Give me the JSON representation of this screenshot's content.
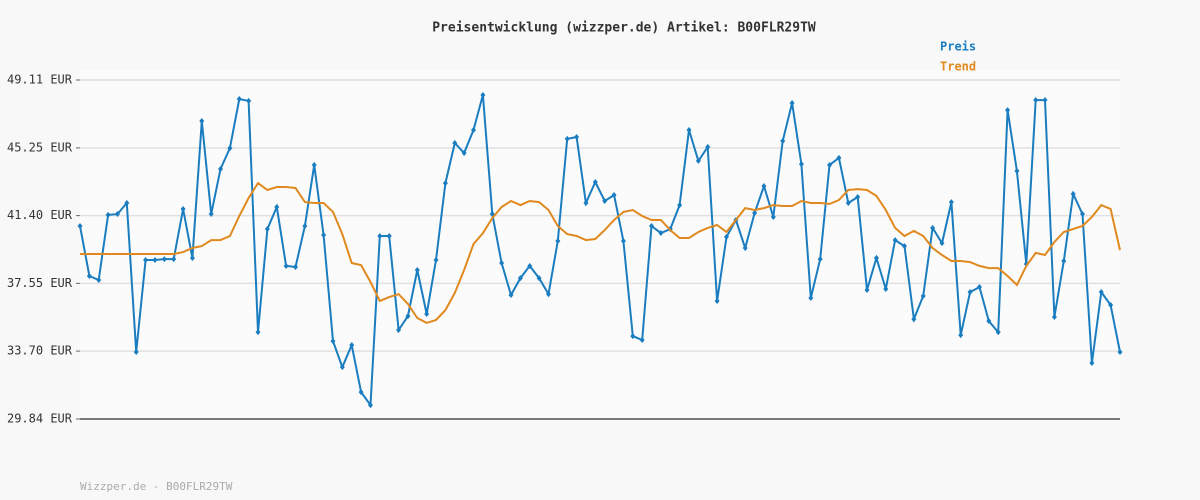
{
  "chart_data": {
    "type": "line",
    "title": "Preisentwicklung (wizzper.de) Artikel: B00FLR29TW",
    "footer": "Wizzper.de - B00FLR29TW",
    "ylim": [
      29.84,
      49.11
    ],
    "yticks": [
      {
        "value": 29.84,
        "label": "29.84 EUR"
      },
      {
        "value": 33.7,
        "label": "33.70 EUR"
      },
      {
        "value": 37.55,
        "label": "37.55 EUR"
      },
      {
        "value": 41.4,
        "label": "41.40 EUR"
      },
      {
        "value": 45.25,
        "label": "45.25 EUR"
      },
      {
        "value": 49.11,
        "label": "49.11 EUR"
      }
    ],
    "grid": true,
    "legend": "top-right",
    "series": [
      {
        "name": "Preis",
        "color": "#1a7dc0",
        "markers": true,
        "values": [
          40.81,
          37.97,
          37.74,
          41.44,
          41.49,
          42.12,
          33.65,
          38.88,
          38.88,
          38.93,
          38.93,
          41.78,
          38.99,
          46.78,
          41.49,
          44.05,
          45.24,
          48.03,
          47.92,
          34.78,
          40.64,
          41.89,
          38.54,
          38.48,
          40.81,
          44.28,
          40.3,
          34.27,
          32.79,
          34.04,
          31.37,
          30.63,
          40.24,
          40.24,
          34.9,
          35.69,
          38.31,
          35.81,
          38.88,
          43.25,
          45.53,
          44.96,
          46.27,
          48.26,
          41.49,
          38.71,
          36.89,
          37.85,
          38.54,
          37.85,
          36.94,
          39.96,
          45.76,
          45.87,
          42.12,
          43.31,
          42.23,
          42.57,
          39.96,
          34.55,
          34.33,
          40.81,
          40.41,
          40.64,
          42.0,
          46.27,
          44.51,
          45.3,
          36.55,
          40.19,
          41.15,
          39.56,
          41.55,
          43.08,
          41.32,
          45.64,
          47.8,
          44.33,
          36.72,
          38.93,
          44.28,
          44.68,
          42.12,
          42.46,
          37.17,
          38.99,
          37.23,
          40.01,
          39.67,
          35.52,
          36.83,
          40.7,
          39.84,
          42.17,
          34.61,
          37.06,
          37.34,
          35.41,
          34.78,
          47.4,
          43.94,
          38.65,
          47.97,
          47.97,
          35.64,
          38.82,
          42.63,
          41.49,
          33.02,
          37.06,
          36.32,
          33.65
        ]
      },
      {
        "name": "Trend",
        "color": "#e0891f",
        "markers": false,
        "values": [
          39.22,
          39.22,
          39.22,
          39.22,
          39.22,
          39.22,
          39.22,
          39.22,
          39.22,
          39.22,
          39.22,
          39.33,
          39.56,
          39.67,
          40.01,
          40.01,
          40.24,
          41.38,
          42.4,
          43.25,
          42.86,
          43.03,
          43.03,
          42.97,
          42.17,
          42.12,
          42.12,
          41.61,
          40.35,
          38.71,
          38.59,
          37.63,
          36.55,
          36.77,
          36.94,
          36.38,
          35.58,
          35.3,
          35.47,
          36.03,
          37.0,
          38.31,
          39.79,
          40.41,
          41.26,
          41.89,
          42.23,
          42.0,
          42.23,
          42.17,
          41.72,
          40.81,
          40.35,
          40.24,
          40.01,
          40.07,
          40.58,
          41.15,
          41.61,
          41.72,
          41.38,
          41.15,
          41.15,
          40.58,
          40.13,
          40.13,
          40.47,
          40.7,
          40.87,
          40.47,
          41.15,
          41.83,
          41.72,
          41.83,
          42.0,
          41.95,
          41.95,
          42.23,
          42.12,
          42.12,
          42.06,
          42.29,
          42.86,
          42.91,
          42.86,
          42.52,
          41.72,
          40.7,
          40.24,
          40.53,
          40.24,
          39.56,
          39.16,
          38.82,
          38.82,
          38.76,
          38.54,
          38.42,
          38.42,
          37.97,
          37.46,
          38.54,
          39.28,
          39.16,
          39.9,
          40.47,
          40.64,
          40.81,
          41.32,
          42.0,
          41.78,
          39.44
        ]
      }
    ]
  }
}
